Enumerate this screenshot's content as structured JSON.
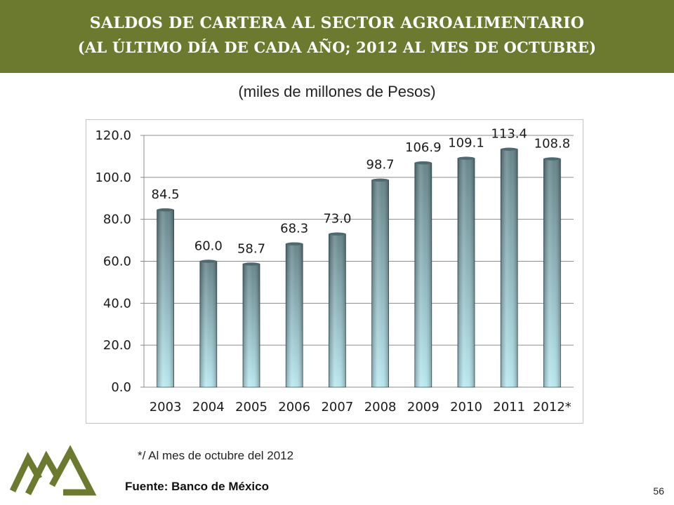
{
  "header": {
    "title_line1": "SALDOS DE CARTERA AL SECTOR AGROALIMENTARIO",
    "title_line2": "(AL ÚLTIMO DÍA DE CADA AÑO; 2012 AL MES DE OCTUBRE)",
    "background_color": "#6b7a2e"
  },
  "units": "(miles de millones de Pesos)",
  "chart_data": {
    "type": "bar",
    "title": "",
    "xlabel": "",
    "ylabel": "",
    "categories": [
      "2003",
      "2004",
      "2005",
      "2006",
      "2007",
      "2008",
      "2009",
      "2010",
      "2011",
      "2012*"
    ],
    "values": [
      84.5,
      60.0,
      58.7,
      68.3,
      73.0,
      98.7,
      106.9,
      109.1,
      113.4,
      108.8
    ],
    "data_labels": [
      "84.5",
      "60.0",
      "58.7",
      "68.3",
      "73.0",
      "98.7",
      "106.9",
      "109.1",
      "113.4",
      "108.8"
    ],
    "ylim": [
      0,
      120
    ],
    "yticks": [
      0,
      20,
      40,
      60,
      80,
      100,
      120
    ],
    "ytick_labels": [
      "0.0",
      "20.0",
      "40.0",
      "60.0",
      "80.0",
      "100.0",
      "120.0"
    ],
    "grid": true,
    "bar_color_top": "#5f7f85",
    "bar_color_bottom": "#b6e7ef"
  },
  "footnote": "*/ Al mes de octubre del 2012",
  "source": "Fuente: Banco de México",
  "page_number": "56",
  "logo": {
    "icon": "mountains-logo-icon",
    "color": "#6b7a2e"
  }
}
